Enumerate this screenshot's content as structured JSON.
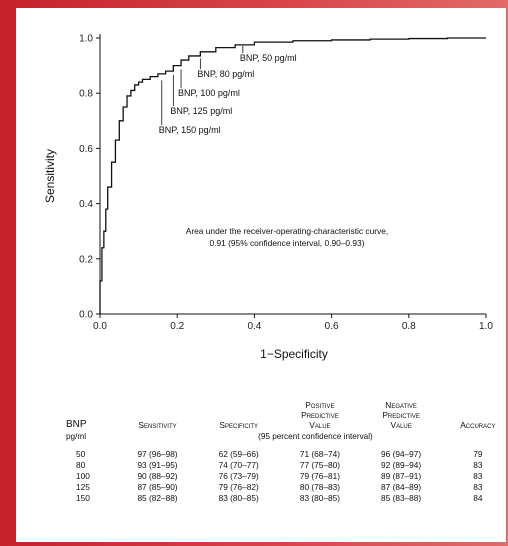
{
  "chart_data": {
    "type": "line",
    "xlabel": "1−Specificity",
    "ylabel": "Sensitivity",
    "xlim": [
      0,
      1
    ],
    "ylim": [
      0,
      1
    ],
    "xticks": [
      "0.0",
      "0.2",
      "0.4",
      "0.6",
      "0.8",
      "1.0"
    ],
    "yticks": [
      "0.0",
      "0.2",
      "0.4",
      "0.6",
      "0.8",
      "1.0"
    ],
    "grid": false,
    "series": [
      {
        "x": [
          0.0,
          0.005,
          0.01,
          0.015,
          0.02,
          0.03,
          0.04,
          0.05,
          0.06,
          0.07,
          0.08,
          0.09,
          0.1,
          0.11,
          0.13,
          0.15,
          0.17,
          0.19,
          0.21,
          0.23,
          0.26,
          0.3,
          0.35,
          0.4,
          0.5,
          0.6,
          0.7,
          0.8,
          0.9,
          1.0
        ],
        "y": [
          0.0,
          0.12,
          0.24,
          0.3,
          0.38,
          0.46,
          0.55,
          0.63,
          0.7,
          0.75,
          0.79,
          0.81,
          0.83,
          0.84,
          0.85,
          0.86,
          0.87,
          0.88,
          0.9,
          0.92,
          0.935,
          0.95,
          0.965,
          0.975,
          0.985,
          0.99,
          0.993,
          0.996,
          0.998,
          1.0
        ]
      }
    ],
    "annotations": [
      {
        "label": "BNP, 50 pg/ml",
        "x": 0.37,
        "y": 0.975
      },
      {
        "label": "BNP, 80 pg/ml",
        "x": 0.26,
        "y": 0.93
      },
      {
        "label": "BNP, 100 pg/ml",
        "x": 0.21,
        "y": 0.89
      },
      {
        "label": "BNP, 125 pg/ml",
        "x": 0.19,
        "y": 0.87
      },
      {
        "label": "BNP, 150 pg/ml",
        "x": 0.16,
        "y": 0.85
      }
    ],
    "note": {
      "line1": "Area under the receiver-operating-characteristic curve,",
      "line2": "0.91 (95% confidence interval, 0.90–0.93)"
    }
  },
  "table": {
    "headers": [
      "BNP",
      "Sensitivity",
      "Specificity",
      "Positive Predictive Value",
      "Negative Predictive Value",
      "Accuracy"
    ],
    "ppv_lines": [
      "Positive",
      "Predictive",
      "Value"
    ],
    "npv_lines": [
      "Negative",
      "Predictive",
      "Value"
    ],
    "unit": "pg/ml",
    "ci_note": "(95 percent confidence interval)",
    "rows": [
      [
        "50",
        "97 (96–98)",
        "62 (59–66)",
        "71 (68–74)",
        "96 (94–97)",
        "79"
      ],
      [
        "80",
        "93 (91–95)",
        "74 (70–77)",
        "77 (75–80)",
        "92 (89–94)",
        "83"
      ],
      [
        "100",
        "90 (88–92)",
        "76 (73–79)",
        "79 (76–81)",
        "89 (87–91)",
        "83"
      ],
      [
        "125",
        "87 (85–90)",
        "79 (76–82)",
        "80 (78–83)",
        "87 (84–89)",
        "83"
      ],
      [
        "150",
        "85 (82–88)",
        "83 (80–85)",
        "83 (80–85)",
        "85 (83–88)",
        "84"
      ]
    ]
  }
}
